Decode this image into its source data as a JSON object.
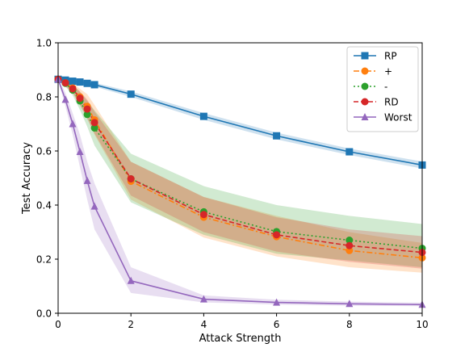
{
  "chart_data": {
    "type": "line",
    "title": "",
    "xlabel": "Attack Strength",
    "ylabel": "Test Accuracy",
    "xlim": [
      0,
      10
    ],
    "ylim": [
      0,
      1.0
    ],
    "xticks": [
      "0",
      "2",
      "4",
      "6",
      "8",
      "10"
    ],
    "xtick_values": [
      0,
      2,
      4,
      6,
      8,
      10
    ],
    "yticks": [
      "0.0",
      "0.2",
      "0.4",
      "0.6",
      "0.8",
      "1.0"
    ],
    "ytick_values": [
      0,
      0.2,
      0.4,
      0.6,
      0.8,
      1.0
    ],
    "grid": false,
    "legend_position": "top-right",
    "series": [
      {
        "name": "RP",
        "color": "#1f77b4",
        "marker": "square",
        "linestyle": "solid",
        "x": [
          0,
          0.2,
          0.4,
          0.6,
          0.8,
          1,
          2,
          4,
          6,
          8,
          10
        ],
        "values": [
          0.865,
          0.862,
          0.858,
          0.855,
          0.85,
          0.845,
          0.81,
          0.728,
          0.656,
          0.597,
          0.548
        ],
        "band_lower": [
          0.86,
          0.857,
          0.853,
          0.849,
          0.843,
          0.838,
          0.8,
          0.715,
          0.643,
          0.585,
          0.535
        ],
        "band_upper": [
          0.87,
          0.867,
          0.863,
          0.861,
          0.857,
          0.852,
          0.82,
          0.74,
          0.668,
          0.609,
          0.561
        ]
      },
      {
        "name": "+",
        "color": "#ff7f0e",
        "marker": "circle",
        "linestyle": "dashdot",
        "x": [
          0,
          0.2,
          0.4,
          0.6,
          0.8,
          1,
          2,
          4,
          6,
          8,
          10
        ],
        "values": [
          0.865,
          0.852,
          0.833,
          0.8,
          0.765,
          0.715,
          0.488,
          0.355,
          0.283,
          0.232,
          0.205
        ],
        "band_lower": [
          0.86,
          0.84,
          0.815,
          0.77,
          0.72,
          0.66,
          0.42,
          0.28,
          0.21,
          0.17,
          0.15
        ],
        "band_upper": [
          0.87,
          0.864,
          0.85,
          0.83,
          0.81,
          0.77,
          0.56,
          0.43,
          0.36,
          0.3,
          0.26
        ]
      },
      {
        "name": "-",
        "color": "#2ca02c",
        "marker": "circle",
        "linestyle": "dotted",
        "x": [
          0,
          0.2,
          0.4,
          0.6,
          0.8,
          1,
          2,
          4,
          6,
          8,
          10
        ],
        "values": [
          0.865,
          0.85,
          0.825,
          0.785,
          0.735,
          0.685,
          0.497,
          0.375,
          0.302,
          0.27,
          0.24
        ],
        "band_lower": [
          0.86,
          0.838,
          0.806,
          0.752,
          0.69,
          0.62,
          0.41,
          0.29,
          0.22,
          0.195,
          0.17
        ],
        "band_upper": [
          0.87,
          0.862,
          0.846,
          0.818,
          0.785,
          0.75,
          0.59,
          0.47,
          0.4,
          0.36,
          0.33
        ]
      },
      {
        "name": "RD",
        "color": "#d62728",
        "marker": "circle",
        "linestyle": "dashed",
        "x": [
          0,
          0.2,
          0.4,
          0.6,
          0.8,
          1,
          2,
          4,
          6,
          8,
          10
        ],
        "values": [
          0.865,
          0.852,
          0.83,
          0.795,
          0.755,
          0.705,
          0.497,
          0.365,
          0.29,
          0.25,
          0.225
        ],
        "band_lower": [
          0.86,
          0.842,
          0.815,
          0.77,
          0.72,
          0.665,
          0.435,
          0.3,
          0.228,
          0.19,
          0.165
        ],
        "band_upper": [
          0.87,
          0.862,
          0.845,
          0.82,
          0.79,
          0.745,
          0.56,
          0.43,
          0.355,
          0.31,
          0.285
        ]
      },
      {
        "name": "Worst",
        "color": "#9467bd",
        "marker": "triangle",
        "linestyle": "solid",
        "x": [
          0,
          0.2,
          0.4,
          0.6,
          0.8,
          1,
          2,
          4,
          6,
          8,
          10
        ],
        "values": [
          0.865,
          0.79,
          0.7,
          0.597,
          0.49,
          0.395,
          0.12,
          0.052,
          0.04,
          0.035,
          0.032
        ],
        "band_lower": [
          0.86,
          0.765,
          0.66,
          0.54,
          0.42,
          0.31,
          0.075,
          0.04,
          0.032,
          0.028,
          0.026
        ],
        "band_upper": [
          0.87,
          0.815,
          0.74,
          0.66,
          0.56,
          0.48,
          0.17,
          0.066,
          0.05,
          0.043,
          0.039
        ]
      }
    ]
  }
}
